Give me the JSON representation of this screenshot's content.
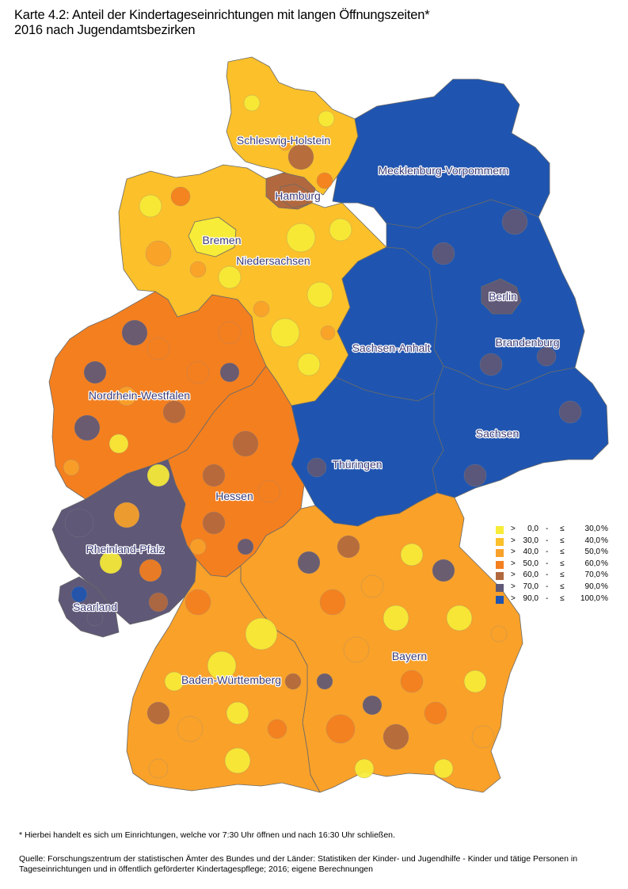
{
  "title": {
    "line1": "Karte 4.2: Anteil der Kindertageseinrichtungen mit langen Öffnungszeiten*",
    "line2": "2016 nach Jugendamtsbezirken"
  },
  "regions": [
    {
      "name": "Schleswig-Holstein",
      "class": 2,
      "color": "#fbc02a"
    },
    {
      "name": "Hamburg",
      "class": 5,
      "color": "#b2683e"
    },
    {
      "name": "Bremen",
      "class": 1,
      "color": "#f7ec37"
    },
    {
      "name": "Niedersachsen",
      "class": 2,
      "color": "#fbc02a"
    },
    {
      "name": "Mecklenburg-Vorpommern",
      "class": 7,
      "color": "#1f55b0"
    },
    {
      "name": "Berlin",
      "class": 6,
      "color": "#5f5877"
    },
    {
      "name": "Brandenburg",
      "class": 7,
      "color": "#1f55b0"
    },
    {
      "name": "Sachsen-Anhalt",
      "class": 7,
      "color": "#1f55b0"
    },
    {
      "name": "Nordrhein-Westfalen",
      "class": 4,
      "color": "#f47f1f"
    },
    {
      "name": "Sachsen",
      "class": 7,
      "color": "#1f55b0"
    },
    {
      "name": "Thüringen",
      "class": 7,
      "color": "#1f55b0"
    },
    {
      "name": "Hessen",
      "class": 4,
      "color": "#f47f1f"
    },
    {
      "name": "Rheinland-Pfalz",
      "class": 6,
      "color": "#5f5877"
    },
    {
      "name": "Saarland",
      "class": 6,
      "color": "#5f5877"
    },
    {
      "name": "Bayern",
      "class": 3,
      "color": "#f9a129"
    },
    {
      "name": "Baden-Württemberg",
      "class": 3,
      "color": "#f9a129"
    }
  ],
  "legend": [
    {
      "op1": ">",
      "from": "0,0",
      "dash": "-",
      "op2": "≤",
      "to": "30,0",
      "unit": "%",
      "color": "#f7ec37"
    },
    {
      "op1": ">",
      "from": "30,0",
      "dash": "-",
      "op2": "≤",
      "to": "40,0",
      "unit": "%",
      "color": "#fbc02a"
    },
    {
      "op1": ">",
      "from": "40,0",
      "dash": "-",
      "op2": "≤",
      "to": "50,0",
      "unit": "%",
      "color": "#f9a129"
    },
    {
      "op1": ">",
      "from": "50,0",
      "dash": "-",
      "op2": "≤",
      "to": "60,0",
      "unit": "%",
      "color": "#f47f1f"
    },
    {
      "op1": ">",
      "from": "60,0",
      "dash": "-",
      "op2": "≤",
      "to": "70,0",
      "unit": "%",
      "color": "#b2683e"
    },
    {
      "op1": ">",
      "from": "70,0",
      "dash": "-",
      "op2": "≤",
      "to": "90,0",
      "unit": "%",
      "color": "#5f5877"
    },
    {
      "op1": ">",
      "from": "90,0",
      "dash": "-",
      "op2": "≤",
      "to": "100,0",
      "unit": "%",
      "color": "#1f55b0"
    }
  ],
  "footnote": "* Hierbei handelt es sich um Einrichtungen, welche vor 7:30 Uhr öffnen und nach 16:30 Uhr schließen.",
  "source": "Quelle: Forschungszentrum der statistischen Ämter des Bundes und der Länder: Statistiken der Kinder- und Jugendhilfe - Kinder und tätige Personen in Tageseinrichtungen und in öffentlich geförderter Kindertagespflege; 2016; eigene Berechnungen"
}
